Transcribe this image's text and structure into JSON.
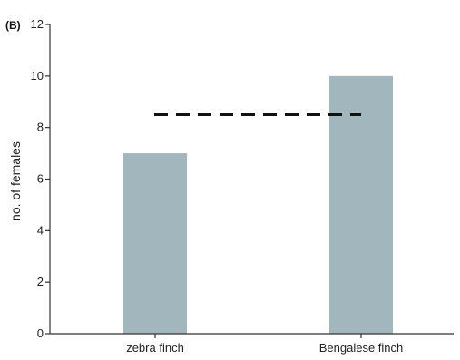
{
  "chart_data": {
    "type": "bar",
    "panel_label": "(B)",
    "categories": [
      "zebra finch",
      "Bengalese finch"
    ],
    "values": [
      7,
      10
    ],
    "ylabel": "no. of females",
    "ylim": [
      0,
      12
    ],
    "yticks": [
      "0",
      "2",
      "4",
      "6",
      "8",
      "10",
      "12"
    ],
    "reference_line": {
      "y": 8.5,
      "style": "dashed"
    },
    "grid": false,
    "legend": "none",
    "bar_color": "#a2b7bd",
    "axis_color": "#333333"
  }
}
